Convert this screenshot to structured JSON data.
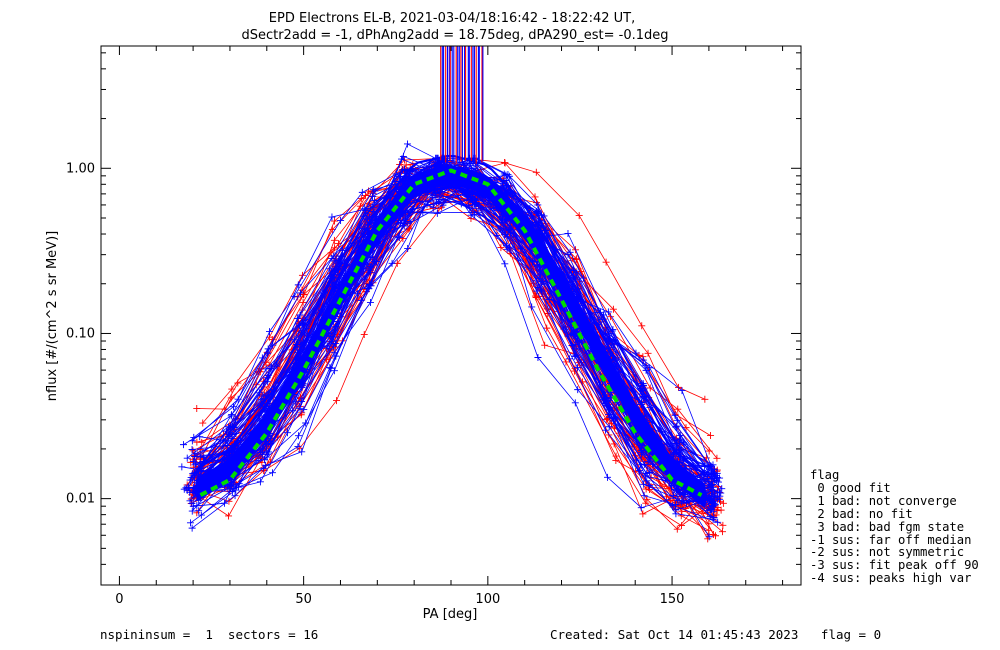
{
  "chart_data": {
    "type": "line",
    "title": "EPD Electrons EL-B, 2021-03-04/18:16:42 - 18:22:42 UT,",
    "subtitle": "dSectr2add = -1, dPhAng2add = 18.75deg, dPA290_est=  -0.1deg",
    "xlabel": "PA [deg]",
    "ylabel": "nflux [#/(cm^2 s sr MeV)]",
    "xlim": [
      -5,
      185
    ],
    "ylim": [
      0.003,
      5.5
    ],
    "yscale": "log",
    "x_ticks": [
      0,
      50,
      100,
      150
    ],
    "x_tick_labels": [
      "0",
      "50",
      "100",
      "150"
    ],
    "y_ticks": [
      0.01,
      0.1,
      1.0
    ],
    "y_tick_labels": [
      "0.01",
      "0.10",
      "1.00"
    ],
    "series": [
      {
        "name": "",
        "color": "#ff0000",
        "marker": "+",
        "x": [
          20,
          30,
          40,
          50,
          60,
          70,
          80,
          90,
          100,
          110,
          120,
          130,
          140,
          150,
          160
        ],
        "values": [
          0.012,
          0.016,
          0.03,
          0.07,
          0.18,
          0.45,
          0.82,
          0.88,
          0.75,
          0.42,
          0.18,
          0.07,
          0.028,
          0.013,
          0.009
        ]
      },
      {
        "name": "",
        "color": "#0000ff",
        "marker": "+",
        "x": [
          20,
          30,
          40,
          50,
          60,
          70,
          80,
          90,
          100,
          110,
          120,
          130,
          140,
          150,
          160
        ],
        "values": [
          0.011,
          0.015,
          0.028,
          0.065,
          0.17,
          0.42,
          0.8,
          0.9,
          0.78,
          0.45,
          0.2,
          0.08,
          0.032,
          0.015,
          0.01
        ]
      },
      {
        "name": "",
        "color": "#00dd00",
        "style": "dashed",
        "x": [
          22,
          30,
          40,
          50,
          60,
          70,
          80,
          90,
          100,
          110,
          120,
          130,
          140,
          150,
          158
        ],
        "values": [
          0.0105,
          0.013,
          0.025,
          0.06,
          0.16,
          0.42,
          0.8,
          0.97,
          0.8,
          0.42,
          0.16,
          0.06,
          0.025,
          0.013,
          0.0105
        ]
      }
    ],
    "grid": false
  },
  "legend": {
    "lines": [
      "flag",
      " 0 good fit",
      " 1 bad: not converge",
      " 2 bad: no fit",
      " 3 bad: bad fgm state",
      "-1 sus: far off median",
      "-2 sus: not symmetric",
      "-3 sus: fit peak off 90",
      "-4 sus: peaks high var"
    ]
  },
  "footer": {
    "left": "nspininsum =  1  sectors = 16",
    "right": "Created: Sat Oct 14 01:45:43 2023   flag = 0"
  },
  "colors": {
    "red": "#ff0000",
    "blue": "#0000ff",
    "fit": "#00dd00",
    "axes": "#000000"
  }
}
